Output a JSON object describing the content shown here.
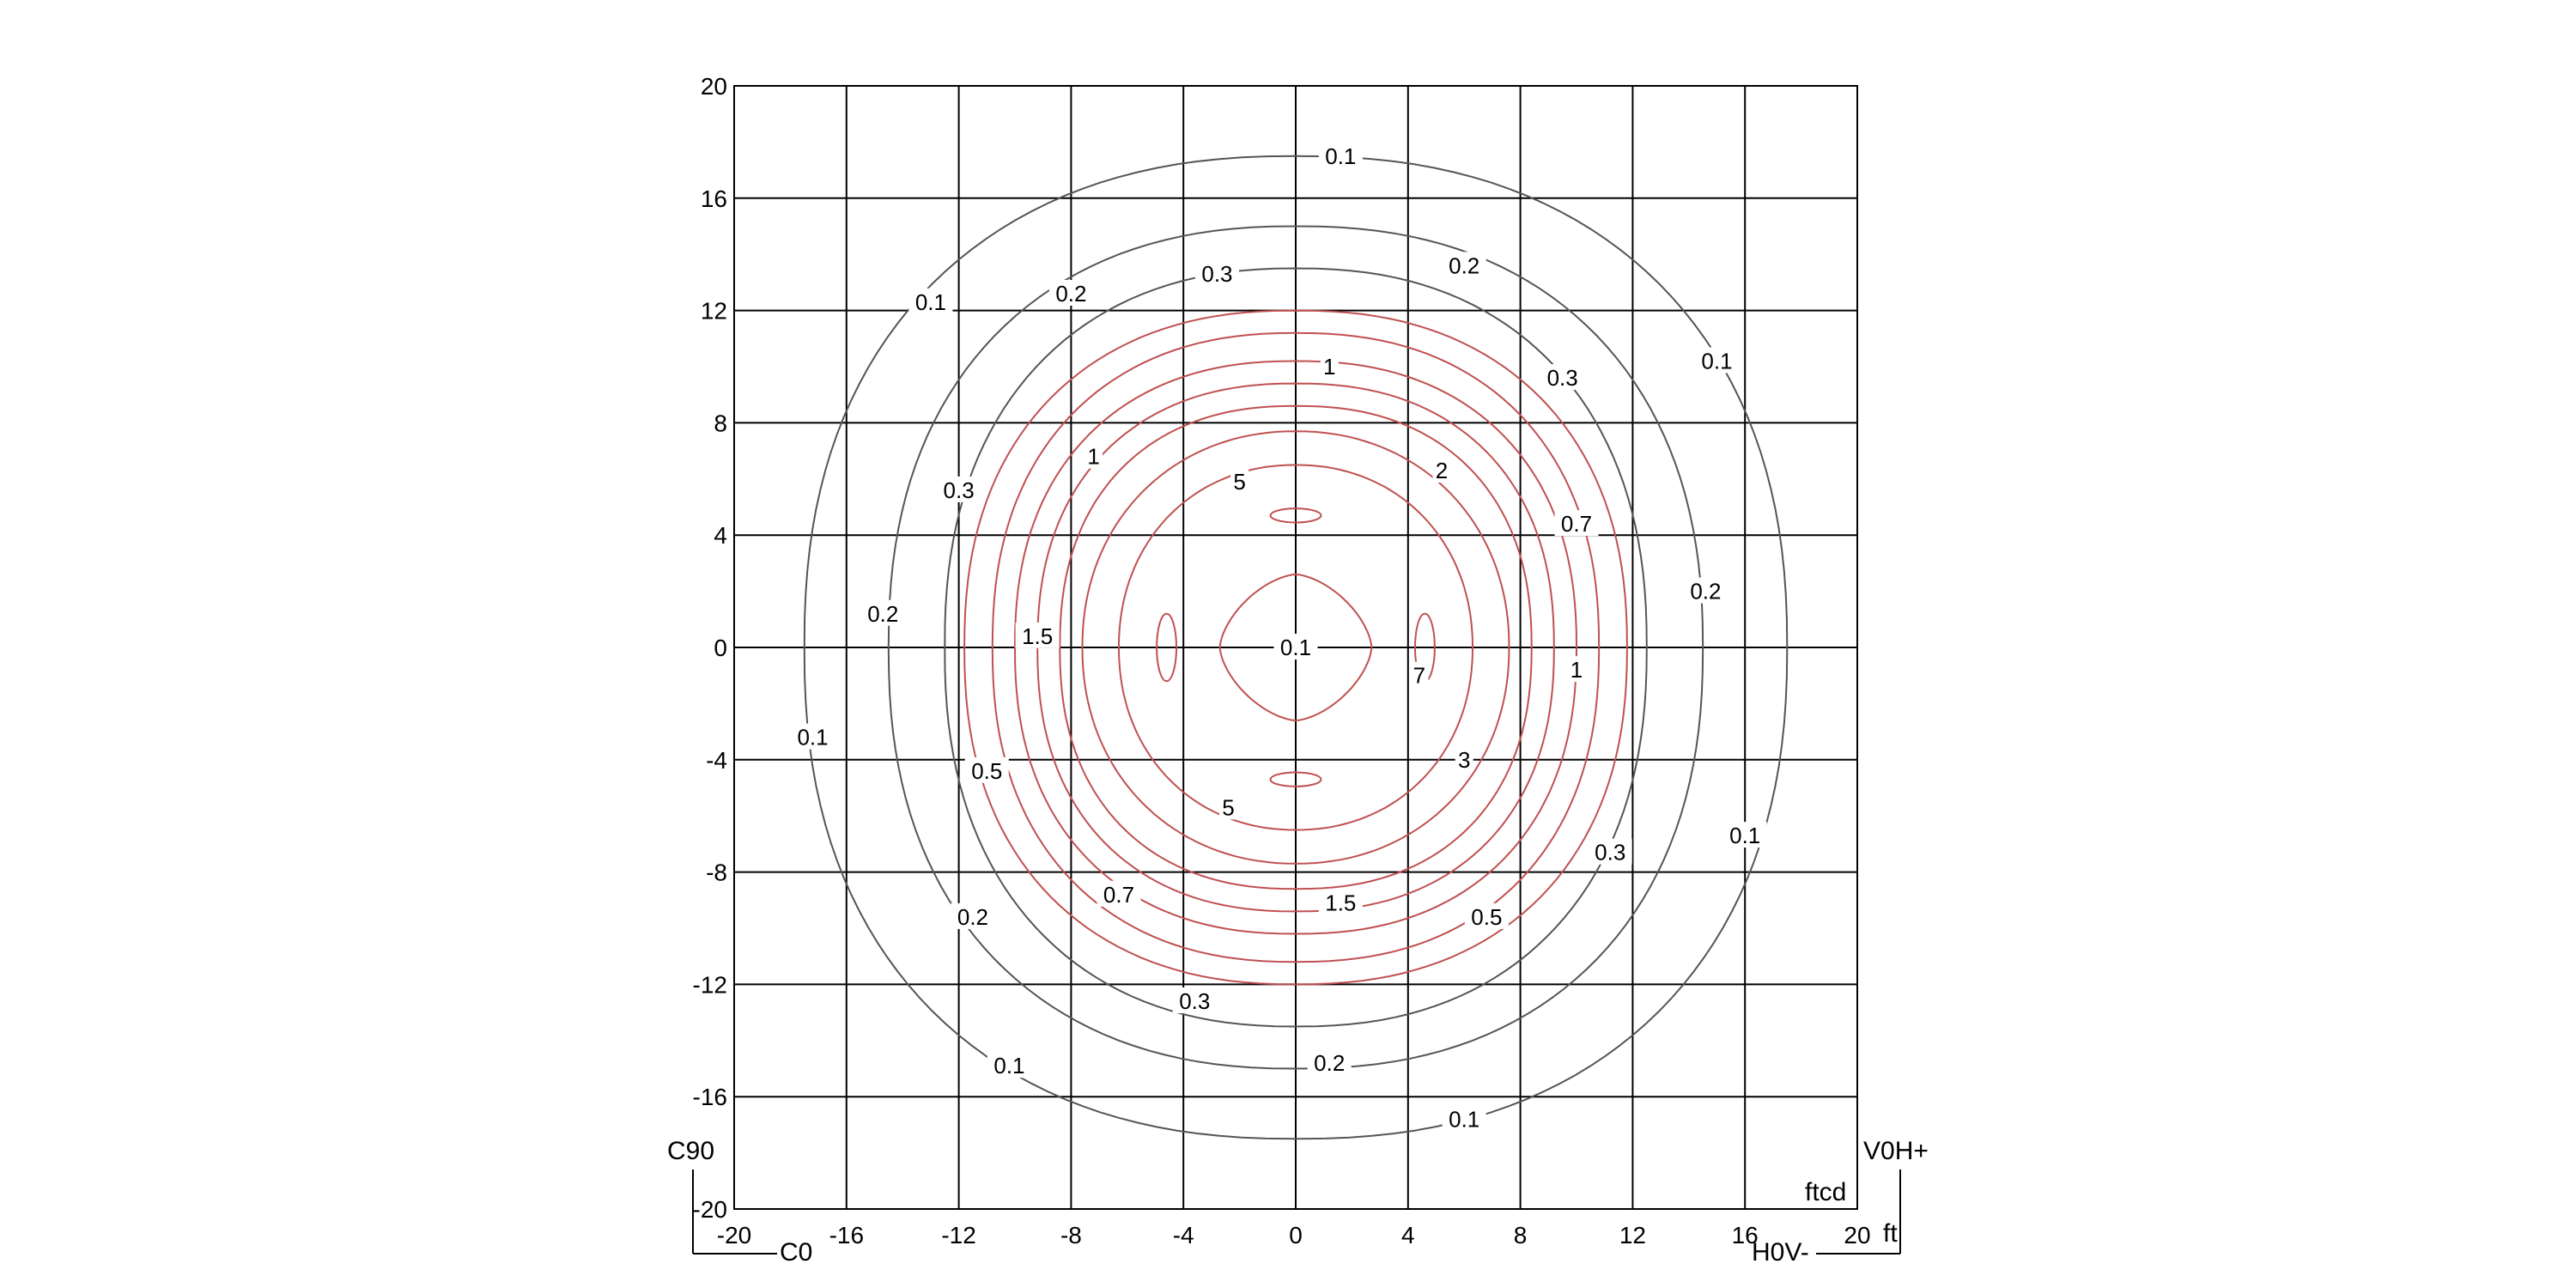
{
  "chart_data": {
    "type": "contour",
    "unit_illuminance": "ftcd",
    "unit_distance": "ft",
    "x_tick_labels": [
      "-20",
      "-16",
      "-12",
      "-8",
      "-4",
      "0",
      "4",
      "8",
      "12",
      "16",
      "20"
    ],
    "y_tick_labels": [
      "20",
      "16",
      "12",
      "8",
      "4",
      "0",
      "-4",
      "-8",
      "-12",
      "-16",
      "-20"
    ],
    "xlim": [
      -20,
      20
    ],
    "ylim": [
      -20,
      20
    ],
    "grid": true,
    "corner_labels": {
      "top_left": "C90",
      "bottom_left": "C0",
      "top_right": "V0H+",
      "bottom_right": "H0V-",
      "unit_ftcd": "ftcd",
      "unit_ft": "ft"
    },
    "contour_levels": [
      {
        "level": 0.1,
        "color": "#555555",
        "rx": 17.5,
        "ry": 17.5,
        "cx": 0,
        "cy": 0
      },
      {
        "level": 0.2,
        "color": "#555555",
        "rx": 14.5,
        "ry": 15.0,
        "cx": 0,
        "cy": 0
      },
      {
        "level": 0.3,
        "color": "#555555",
        "rx": 12.5,
        "ry": 13.5,
        "cx": 0,
        "cy": 0
      },
      {
        "level": 0.5,
        "color": "#c05050",
        "rx": 11.8,
        "ry": 12.0,
        "cx": 0,
        "cy": 0
      },
      {
        "level": 0.7,
        "color": "#c05050",
        "rx": 10.8,
        "ry": 11.2,
        "cx": 0,
        "cy": 0
      },
      {
        "level": 1.0,
        "color": "#c05050",
        "rx": 10.0,
        "ry": 10.2,
        "cx": 0,
        "cy": 0
      },
      {
        "level": 1.5,
        "color": "#c05050",
        "rx": 9.2,
        "ry": 9.4,
        "cx": 0,
        "cy": 0
      },
      {
        "level": 2.0,
        "color": "#c05050",
        "rx": 8.4,
        "ry": 8.6,
        "cx": 0,
        "cy": 0
      },
      {
        "level": 3.0,
        "color": "#c05050",
        "rx": 7.6,
        "ry": 7.7,
        "cx": 0,
        "cy": 0
      },
      {
        "level": 5.0,
        "color": "#c05050",
        "rx": 6.3,
        "ry": 6.5,
        "cx": 0,
        "cy": 0
      },
      {
        "level": 7.0,
        "color": "#c05050",
        "rx": 2.7,
        "ry": 2.6,
        "cx": 0,
        "cy": 0
      }
    ],
    "local_peaks": [
      {
        "x": 0,
        "y": 4.7,
        "rx": 0.9,
        "ry": 0.25
      },
      {
        "x": 0,
        "y": -4.7,
        "rx": 0.9,
        "ry": 0.25
      },
      {
        "x": -4.6,
        "y": 0,
        "rx": 0.35,
        "ry": 1.2
      },
      {
        "x": 4.6,
        "y": 0,
        "rx": 0.35,
        "ry": 1.2
      },
      {
        "x": 0,
        "y": 0,
        "rx": 0.4,
        "ry": 0.4
      }
    ],
    "contour_labels": [
      {
        "text": "0.1",
        "x": 1.6,
        "y": 17.5
      },
      {
        "text": "0.1",
        "x": -13.0,
        "y": 12.3
      },
      {
        "text": "0.1",
        "x": 15.0,
        "y": 10.2
      },
      {
        "text": "0.1",
        "x": -17.2,
        "y": -3.2
      },
      {
        "text": "0.1",
        "x": 16.0,
        "y": -6.7
      },
      {
        "text": "0.1",
        "x": -10.2,
        "y": -14.9
      },
      {
        "text": "0.1",
        "x": 6.0,
        "y": -16.8
      },
      {
        "text": "0.2",
        "x": -8.0,
        "y": 12.6
      },
      {
        "text": "0.2",
        "x": 6.0,
        "y": 13.6
      },
      {
        "text": "0.2",
        "x": -14.7,
        "y": 1.2
      },
      {
        "text": "0.2",
        "x": 14.6,
        "y": 2.0
      },
      {
        "text": "0.2",
        "x": -11.5,
        "y": -9.6
      },
      {
        "text": "0.2",
        "x": 1.2,
        "y": -14.8
      },
      {
        "text": "0.3",
        "x": -2.8,
        "y": 13.3
      },
      {
        "text": "0.3",
        "x": 9.5,
        "y": 9.6
      },
      {
        "text": "0.3",
        "x": -12.0,
        "y": 5.6
      },
      {
        "text": "0.3",
        "x": 11.2,
        "y": -7.3
      },
      {
        "text": "0.3",
        "x": -3.6,
        "y": -12.6
      },
      {
        "text": "0.5",
        "x": -11.0,
        "y": -4.4
      },
      {
        "text": "0.5",
        "x": 6.8,
        "y": -9.6
      },
      {
        "text": "0.7",
        "x": 10.0,
        "y": 4.4
      },
      {
        "text": "0.7",
        "x": -6.3,
        "y": -8.8
      },
      {
        "text": "1",
        "x": 1.2,
        "y": 10.0
      },
      {
        "text": "1",
        "x": -7.2,
        "y": 6.8
      },
      {
        "text": "1",
        "x": 10.0,
        "y": -0.8
      },
      {
        "text": "1.5",
        "x": -9.2,
        "y": 0.4
      },
      {
        "text": "1.5",
        "x": 1.6,
        "y": -9.1
      },
      {
        "text": "2",
        "x": 5.2,
        "y": 6.3
      },
      {
        "text": "3",
        "x": 6.0,
        "y": -4.0
      },
      {
        "text": "5",
        "x": -2.0,
        "y": 5.9
      },
      {
        "text": "5",
        "x": -2.4,
        "y": -5.7
      },
      {
        "text": "7",
        "x": 4.4,
        "y": -1.0
      },
      {
        "text": "0.1",
        "x": 0,
        "y": 0
      }
    ]
  }
}
